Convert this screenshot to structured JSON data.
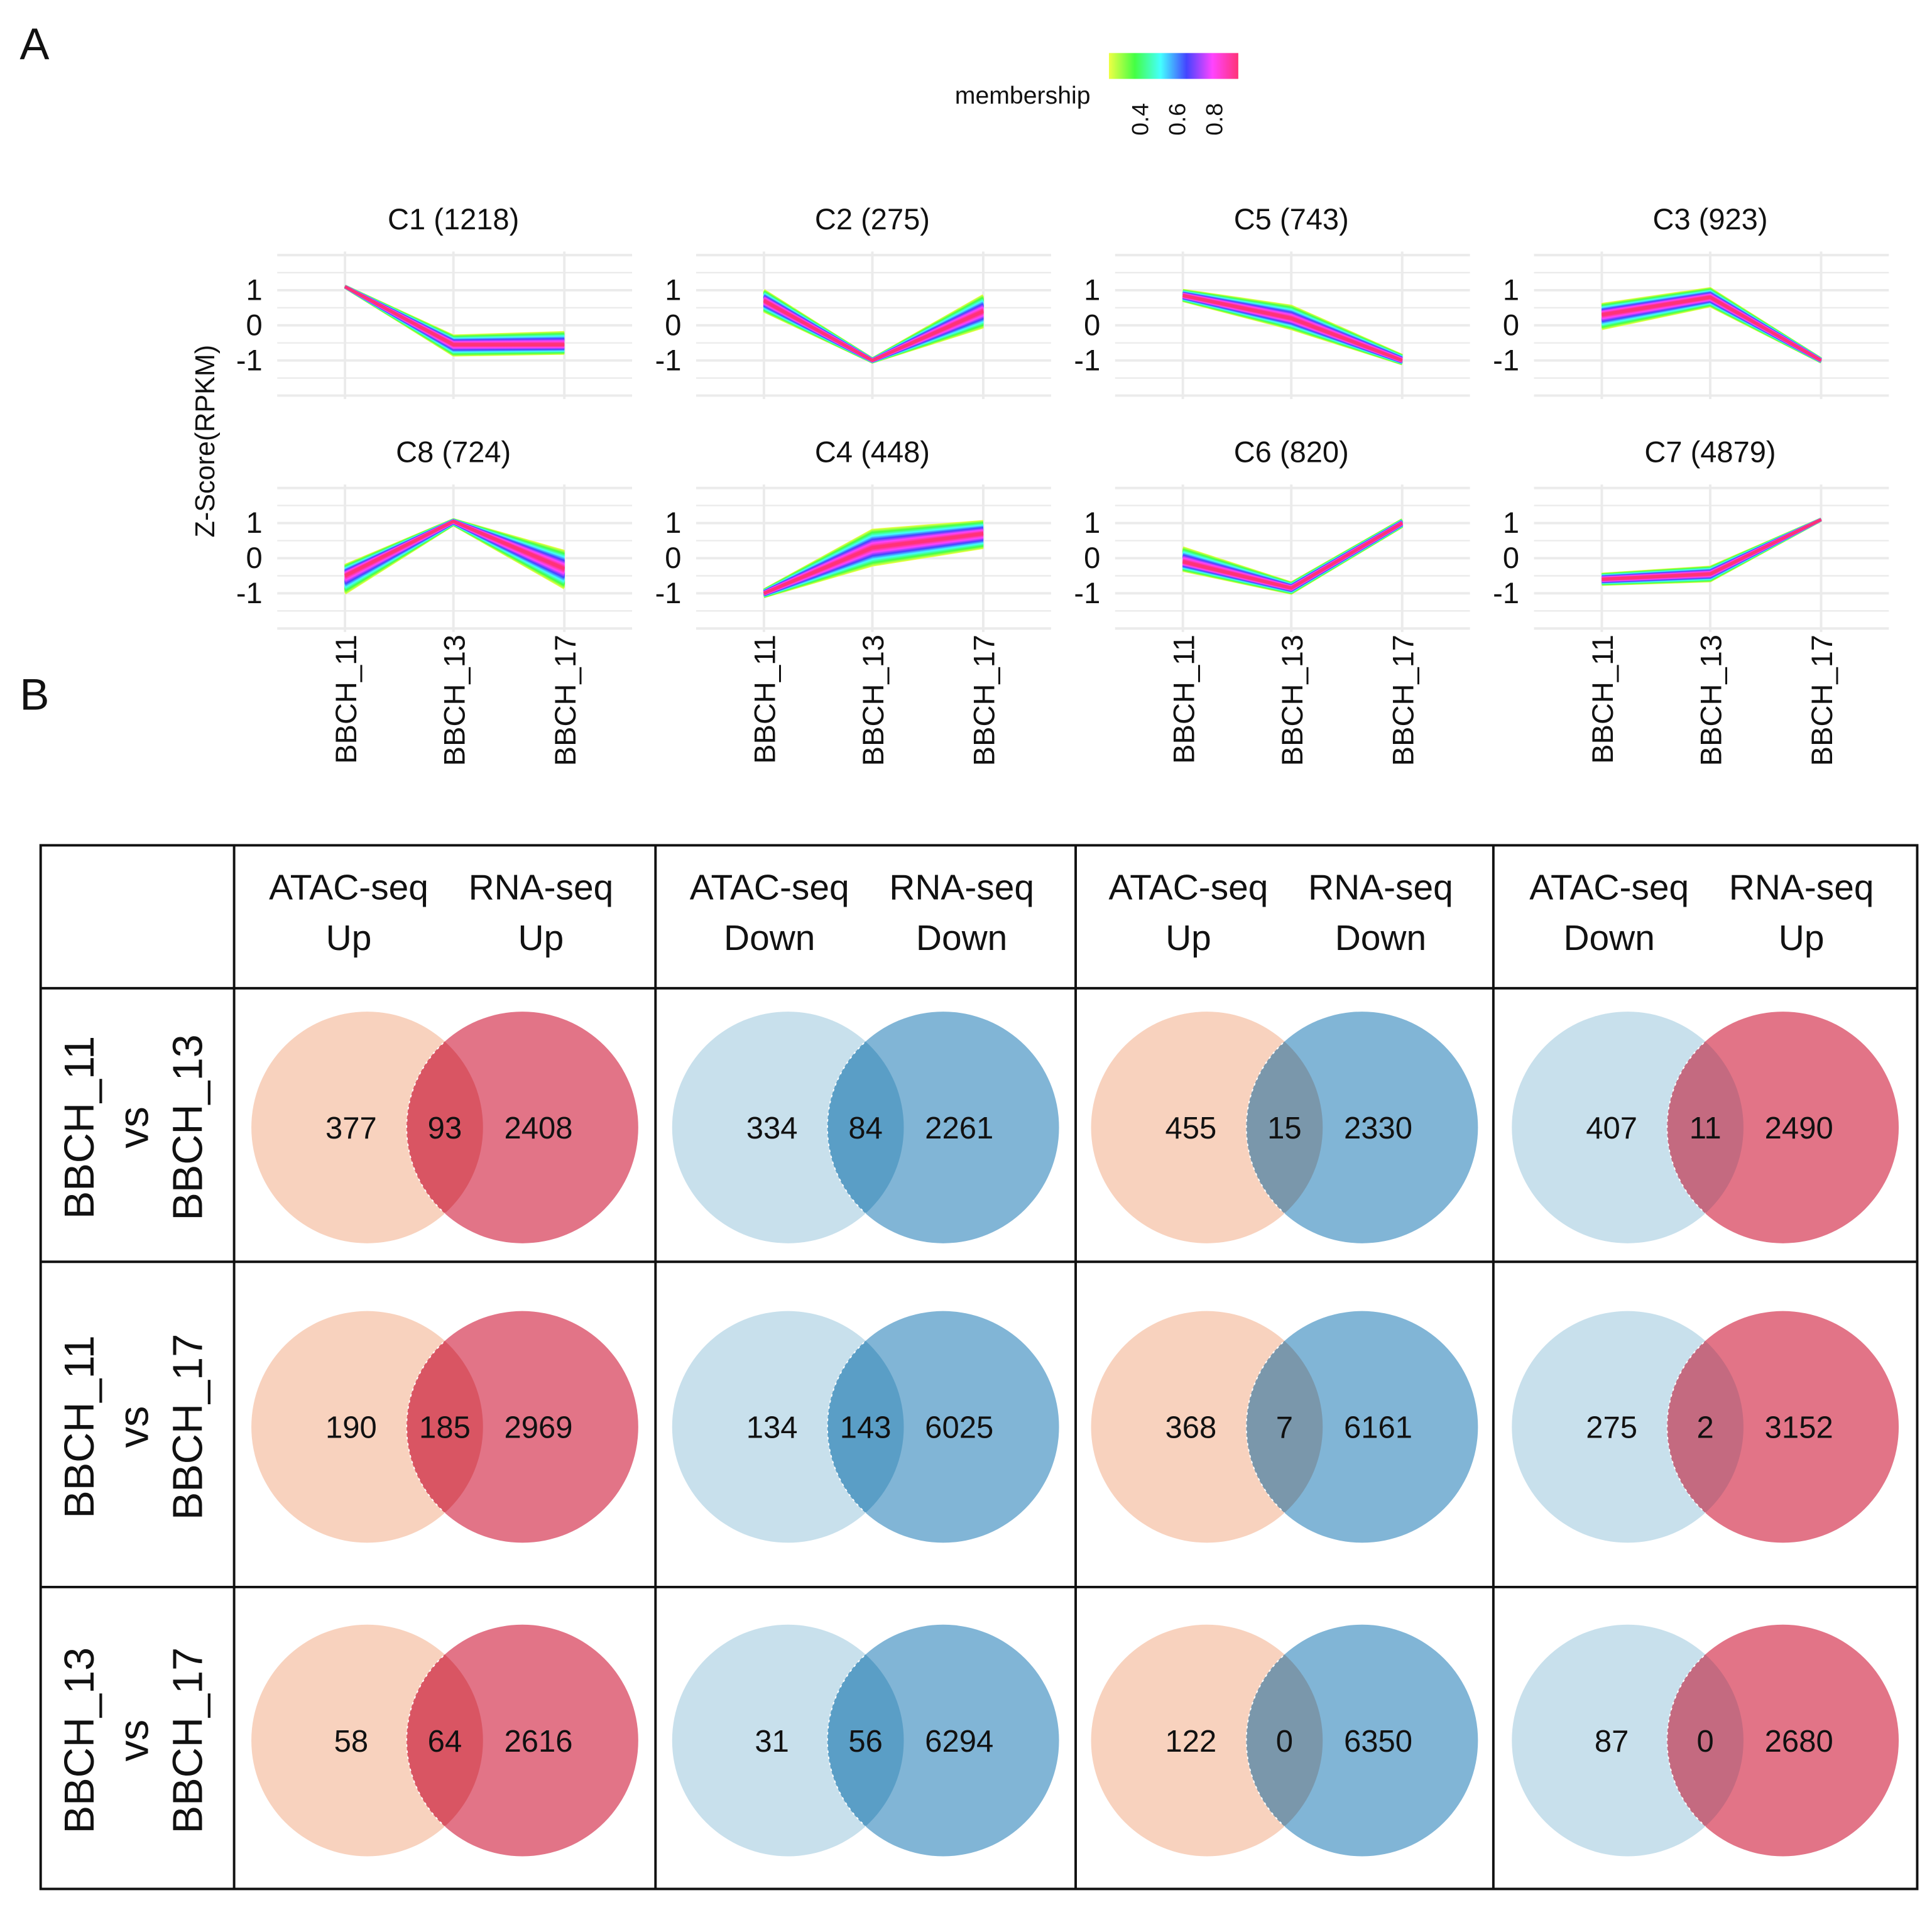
{
  "panel_labels": {
    "a": "A",
    "b": "B"
  },
  "chart_data": [
    {
      "type": "line",
      "ylabel": "Z-Score(RPKM)",
      "x_categories": [
        "BBCH_11",
        "BBCH_13",
        "BBCH_17"
      ],
      "y_ticks": [
        "1",
        "0",
        "-1"
      ],
      "ylim": [
        -2,
        2
      ],
      "grid": true,
      "legend": {
        "title": "membership",
        "ticks": [
          "0.4",
          "0.6",
          "0.8"
        ],
        "colors": [
          "#eeff44",
          "#44ff44",
          "#44ffff",
          "#4444ff",
          "#ff44ff",
          "#ff3377"
        ],
        "placement": "top"
      },
      "clusters": [
        {
          "title": "C1 (1218)",
          "core": [
            1.1,
            -0.55,
            -0.55
          ],
          "upper": [
            1.12,
            -0.3,
            -0.2
          ],
          "lower": [
            1.08,
            -0.85,
            -0.8
          ]
        },
        {
          "title": "C2 (275)",
          "core": [
            0.7,
            -1.0,
            0.4
          ],
          "upper": [
            1.0,
            -0.95,
            0.85
          ],
          "lower": [
            0.4,
            -1.05,
            -0.05
          ]
        },
        {
          "title": "C5 (743)",
          "core": [
            0.85,
            0.2,
            -1.0
          ],
          "upper": [
            1.0,
            0.55,
            -0.85
          ],
          "lower": [
            0.7,
            -0.1,
            -1.1
          ]
        },
        {
          "title": "C3 (923)",
          "core": [
            0.3,
            0.8,
            -1.0
          ],
          "upper": [
            0.6,
            1.05,
            -0.95
          ],
          "lower": [
            -0.1,
            0.55,
            -1.05
          ]
        },
        {
          "title": "C8 (724)",
          "core": [
            -0.5,
            1.05,
            -0.3
          ],
          "upper": [
            -0.2,
            1.1,
            0.2
          ],
          "lower": [
            -1.0,
            0.95,
            -0.85
          ]
        },
        {
          "title": "C4 (448)",
          "core": [
            -1.0,
            0.3,
            0.7
          ],
          "upper": [
            -0.9,
            0.8,
            1.05
          ],
          "lower": [
            -1.1,
            -0.2,
            0.3
          ]
        },
        {
          "title": "C6 (820)",
          "core": [
            -0.1,
            -0.85,
            1.0
          ],
          "upper": [
            0.3,
            -0.7,
            1.1
          ],
          "lower": [
            -0.35,
            -1.0,
            0.9
          ]
        },
        {
          "title": "C7 (4879)",
          "core": [
            -0.6,
            -0.45,
            1.1
          ],
          "upper": [
            -0.45,
            -0.25,
            1.12
          ],
          "lower": [
            -0.75,
            -0.65,
            1.08
          ]
        }
      ]
    },
    {
      "type": "table",
      "columns": [
        {
          "left": "ATAC-seq",
          "right": "RNA-seq",
          "left_dir": "Up",
          "right_dir": "Up",
          "colors": [
            "#f8d2be",
            "#e27487",
            "#d95563"
          ]
        },
        {
          "left": "ATAC-seq",
          "right": "RNA-seq",
          "left_dir": "Down",
          "right_dir": "Down",
          "colors": [
            "#c8e0ec",
            "#81b5d6",
            "#5a9ec6"
          ]
        },
        {
          "left": "ATAC-seq",
          "right": "RNA-seq",
          "left_dir": "Up",
          "right_dir": "Down",
          "colors": [
            "#f8d2be",
            "#81b5d6",
            "#7a97ab"
          ]
        },
        {
          "left": "ATAC-seq",
          "right": "RNA-seq",
          "left_dir": "Down",
          "right_dir": "Up",
          "colors": [
            "#c8e0ec",
            "#e27487",
            "#c46a80"
          ]
        }
      ],
      "rows": [
        {
          "line1": "BBCH_11",
          "line2": "vs",
          "line3": "BBCH_13",
          "cells": [
            [
              377,
              93,
              2408
            ],
            [
              334,
              84,
              2261
            ],
            [
              455,
              15,
              2330
            ],
            [
              407,
              11,
              2490
            ]
          ]
        },
        {
          "line1": "BBCH_11",
          "line2": "vs",
          "line3": "BBCH_17",
          "cells": [
            [
              190,
              185,
              2969
            ],
            [
              134,
              143,
              6025
            ],
            [
              368,
              7,
              6161
            ],
            [
              275,
              2,
              3152
            ]
          ]
        },
        {
          "line1": "BBCH_13",
          "line2": "vs",
          "line3": "BBCH_17",
          "cells": [
            [
              58,
              64,
              2616
            ],
            [
              31,
              56,
              6294
            ],
            [
              122,
              0,
              6350
            ],
            [
              87,
              0,
              2680
            ]
          ]
        }
      ]
    }
  ]
}
